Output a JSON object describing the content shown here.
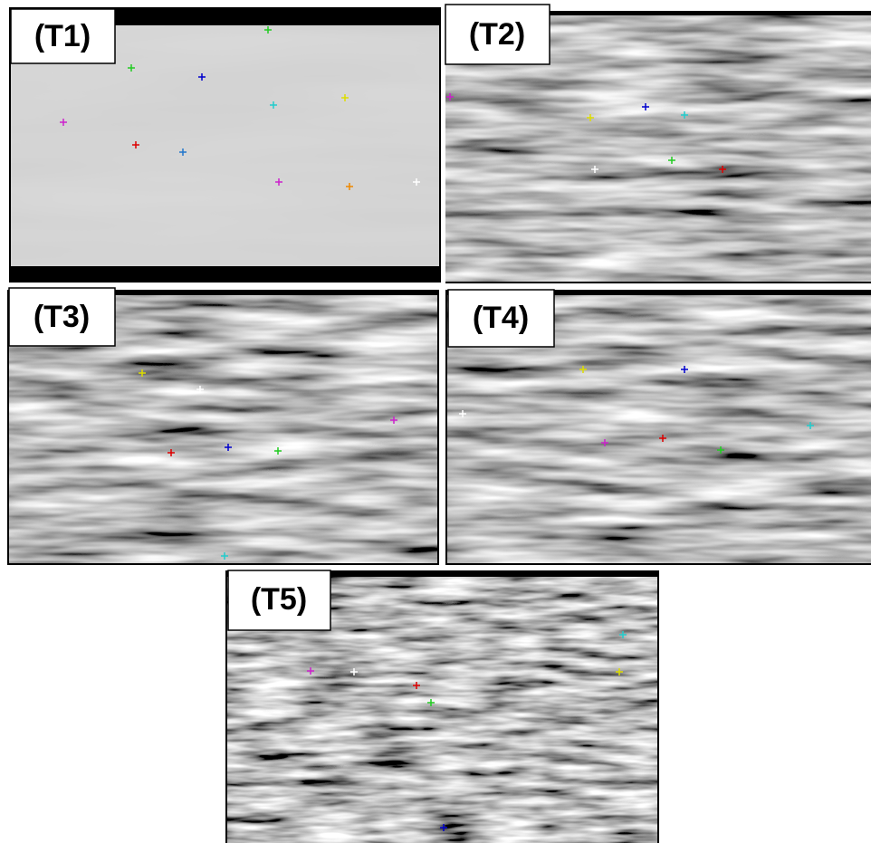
{
  "panels": [
    {
      "label": "(T1)"
    },
    {
      "label": "(T2)"
    },
    {
      "label": "(T3)"
    },
    {
      "label": "(T4)"
    },
    {
      "label": "(T5)"
    }
  ]
}
